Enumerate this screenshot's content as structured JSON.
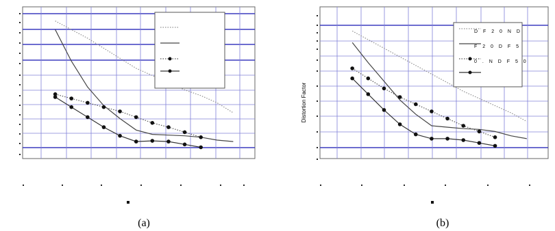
{
  "chart_data": [
    {
      "panel": "a",
      "type": "line",
      "caption": "(a)",
      "xlabel": "",
      "ylabel": "",
      "x": [
        1,
        2,
        3,
        4,
        5,
        6,
        7,
        8,
        9,
        10,
        11,
        12
      ],
      "xlim": [
        0,
        13
      ],
      "ylim": [
        0,
        10
      ],
      "grid": true,
      "legend_position": "top-right",
      "legend_entries": [],
      "series": [
        {
          "style": "dotted",
          "color": "#8f8f8f",
          "markers": false,
          "points": [
            [
              1,
              9.3
            ],
            [
              2,
              8.7
            ],
            [
              3,
              8.1
            ],
            [
              4,
              7.4
            ],
            [
              5,
              6.7
            ],
            [
              6,
              6.0
            ],
            [
              7,
              5.5
            ],
            [
              8,
              5.0
            ],
            [
              9,
              4.5
            ],
            [
              10,
              4.1
            ],
            [
              11,
              3.6
            ],
            [
              12,
              2.9
            ]
          ]
        },
        {
          "style": "solid",
          "color": "#444444",
          "markers": false,
          "points": [
            [
              1,
              8.7
            ],
            [
              2,
              6.5
            ],
            [
              3,
              4.7
            ],
            [
              4,
              3.4
            ],
            [
              5,
              2.5
            ],
            [
              6,
              1.7
            ],
            [
              7,
              1.4
            ],
            [
              8,
              1.35
            ],
            [
              9,
              1.3
            ],
            [
              10,
              1.2
            ],
            [
              11,
              1.0
            ],
            [
              12,
              0.9
            ]
          ]
        },
        {
          "style": "dotted",
          "color": "#555555",
          "markers": true,
          "points": [
            [
              1,
              4.2
            ],
            [
              2,
              3.9
            ],
            [
              3,
              3.6
            ],
            [
              4,
              3.3
            ],
            [
              5,
              3.0
            ],
            [
              6,
              2.6
            ],
            [
              7,
              2.2
            ],
            [
              8,
              1.9
            ],
            [
              9,
              1.55
            ],
            [
              10,
              1.2
            ]
          ]
        },
        {
          "style": "solid",
          "color": "#333333",
          "markers": true,
          "points": [
            [
              1,
              4.0
            ],
            [
              2,
              3.3
            ],
            [
              3,
              2.6
            ],
            [
              4,
              1.9
            ],
            [
              5,
              1.3
            ],
            [
              6,
              0.9
            ],
            [
              7,
              0.95
            ],
            [
              8,
              0.9
            ],
            [
              9,
              0.7
            ],
            [
              10,
              0.5
            ]
          ]
        }
      ]
    },
    {
      "panel": "b",
      "type": "line",
      "caption": "(b)",
      "xlabel": "",
      "ylabel": "Distortion Factor",
      "x": [
        1,
        2,
        3,
        4,
        5,
        6,
        7,
        8,
        9,
        10,
        11,
        12
      ],
      "xlim": [
        0,
        13
      ],
      "ylim": [
        0,
        10
      ],
      "grid": true,
      "legend_position": "top-right",
      "legend_entries": [
        "D F 2 0 N D",
        "F 2 0 D F 5",
        "0 . N D F 5 0"
      ],
      "series": [
        {
          "style": "dotted",
          "color": "#8f8f8f",
          "markers": false,
          "points": [
            [
              1,
              8.6
            ],
            [
              2,
              8.0
            ],
            [
              3,
              7.4
            ],
            [
              4,
              6.8
            ],
            [
              5,
              6.2
            ],
            [
              6,
              5.6
            ],
            [
              7,
              5.0
            ],
            [
              8,
              4.4
            ],
            [
              9,
              3.9
            ],
            [
              10,
              3.4
            ],
            [
              11,
              2.9
            ],
            [
              12,
              2.3
            ]
          ]
        },
        {
          "style": "solid",
          "color": "#444444",
          "markers": false,
          "points": [
            [
              1,
              7.8
            ],
            [
              2,
              6.4
            ],
            [
              3,
              5.1
            ],
            [
              4,
              3.8
            ],
            [
              5,
              2.8
            ],
            [
              6,
              2.0
            ],
            [
              7,
              1.9
            ],
            [
              8,
              1.8
            ],
            [
              9,
              1.75
            ],
            [
              10,
              1.6
            ],
            [
              11,
              1.3
            ],
            [
              12,
              1.1
            ]
          ]
        },
        {
          "style": "dotted",
          "color": "#555555",
          "markers": true,
          "points": [
            [
              1,
              6.0
            ],
            [
              2,
              5.3
            ],
            [
              3,
              4.6
            ],
            [
              4,
              4.0
            ],
            [
              5,
              3.5
            ],
            [
              6,
              3.0
            ],
            [
              7,
              2.5
            ],
            [
              8,
              2.0
            ],
            [
              9,
              1.6
            ],
            [
              10,
              1.2
            ]
          ]
        },
        {
          "style": "solid",
          "color": "#333333",
          "markers": true,
          "points": [
            [
              1,
              5.3
            ],
            [
              2,
              4.2
            ],
            [
              3,
              3.1
            ],
            [
              4,
              2.1
            ],
            [
              5,
              1.4
            ],
            [
              6,
              1.1
            ],
            [
              7,
              1.1
            ],
            [
              8,
              1.0
            ],
            [
              9,
              0.8
            ],
            [
              10,
              0.6
            ]
          ]
        }
      ]
    }
  ]
}
